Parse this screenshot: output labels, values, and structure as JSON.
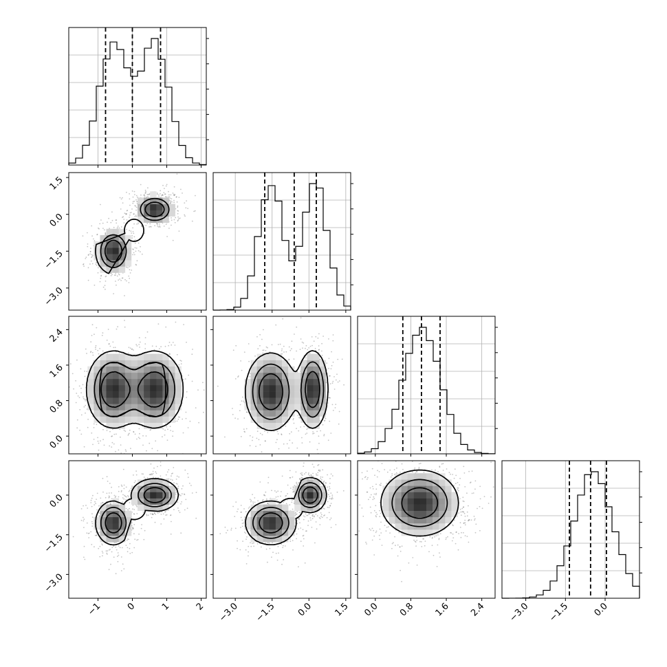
{
  "chart_data": {
    "type": "corner",
    "title": "",
    "grid": true,
    "parameters": [
      {
        "mode": "bimodal",
        "peaks": [
          -0.55,
          0.65
        ],
        "sigma": 0.42,
        "lim": [
          -1.85,
          2.15
        ],
        "ticks": [
          -1,
          0,
          1,
          2
        ],
        "tick_labels": [
          "−1",
          "0",
          "1",
          "2"
        ],
        "quantiles": [
          -0.78,
          0.0,
          0.82
        ]
      },
      {
        "mode": "bimodal",
        "peaks": [
          -1.55,
          0.25
        ],
        "sigma": 0.5,
        "lim": [
          -3.9,
          1.7
        ],
        "ticks": [
          -3.0,
          -1.5,
          0.0,
          1.5
        ],
        "tick_labels": [
          "−3.0",
          "−1.5",
          "0.0",
          "1.5"
        ],
        "quantiles": [
          -1.8,
          -0.6,
          0.3
        ]
      },
      {
        "mode": "unimodal",
        "center": 1.05,
        "sigma": 0.42,
        "lim": [
          -0.4,
          2.7
        ],
        "ticks": [
          0.0,
          0.8,
          1.6,
          2.4
        ],
        "tick_labels": [
          "0.0",
          "0.8",
          "1.6",
          "2.4"
        ],
        "quantiles": [
          0.62,
          1.04,
          1.46
        ]
      },
      {
        "mode": "unimodal",
        "center": -0.45,
        "sigma": 0.75,
        "lim": [
          -3.9,
          1.3
        ],
        "ticks": [
          -3.0,
          -1.5,
          0.0
        ],
        "tick_labels": [
          "−3.0",
          "−1.5",
          "0.0"
        ],
        "quantiles": [
          -1.35,
          -0.55,
          0.05
        ]
      }
    ],
    "joint": {
      "1_0": {
        "clusters": [
          {
            "x": -0.55,
            "y": -1.5,
            "sx": 0.25,
            "sy": 0.45
          },
          {
            "x": 0.65,
            "y": 0.2,
            "sx": 0.28,
            "sy": 0.3
          }
        ]
      },
      "2_0": {
        "clusters": [
          {
            "x": -0.55,
            "y": 1.05,
            "sx": 0.38,
            "sy": 0.42
          },
          {
            "x": 0.65,
            "y": 1.05,
            "sx": 0.4,
            "sy": 0.42
          }
        ]
      },
      "2_1": {
        "clusters": [
          {
            "x": -1.55,
            "y": 1.0,
            "sx": 0.5,
            "sy": 0.42
          },
          {
            "x": 0.15,
            "y": 1.05,
            "sx": 0.3,
            "sy": 0.42
          }
        ]
      },
      "3_0": {
        "clusters": [
          {
            "x": -0.55,
            "y": -1.05,
            "sx": 0.25,
            "sy": 0.4
          },
          {
            "x": 0.65,
            "y": 0.0,
            "sx": 0.33,
            "sy": 0.3
          }
        ]
      },
      "3_1": {
        "clusters": [
          {
            "x": -1.55,
            "y": -1.05,
            "sx": 0.5,
            "sy": 0.4
          },
          {
            "x": 0.05,
            "y": 0.0,
            "sx": 0.32,
            "sy": 0.32
          }
        ]
      },
      "3_2": {
        "clusters": [
          {
            "x": 1.0,
            "y": -0.3,
            "sx": 0.42,
            "sy": 0.6
          }
        ]
      }
    },
    "hist_ylim_ticks": [
      0,
      0.2,
      0.4,
      0.6,
      0.8,
      1.0
    ]
  }
}
